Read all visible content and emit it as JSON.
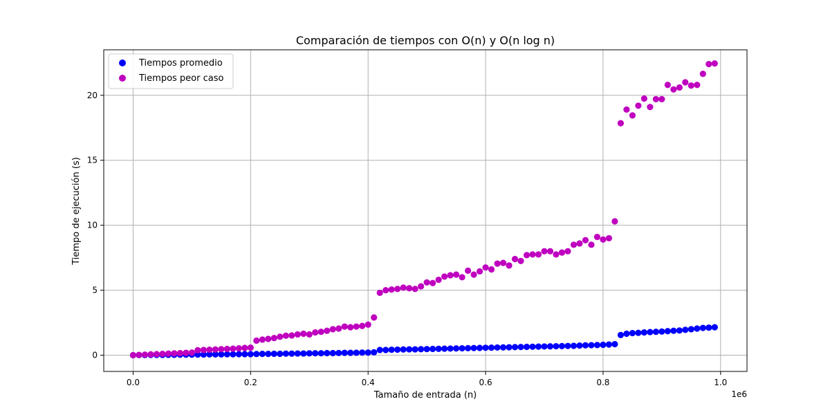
{
  "chart_data": {
    "type": "scatter",
    "title": "Comparación de tiempos con O(n) y O(n log n)",
    "xlabel": "Tamaño de entrada (n)",
    "ylabel": "Tiempo de ejecución (s)",
    "x_offset_label": "1e6",
    "xlim": [
      -50000,
      1045000
    ],
    "ylim": [
      -1.25,
      23.5
    ],
    "xticks": [
      0,
      200000,
      400000,
      600000,
      800000,
      1000000
    ],
    "xtick_labels": [
      "0.0",
      "0.2",
      "0.4",
      "0.6",
      "0.8",
      "1.0"
    ],
    "yticks": [
      0,
      5,
      10,
      15,
      20
    ],
    "ytick_labels": [
      "0",
      "5",
      "10",
      "15",
      "20"
    ],
    "grid": true,
    "legend_position": "top-left",
    "series": [
      {
        "name": "Tiempos promedio",
        "color": "#0000ff",
        "x": [
          0,
          10000,
          20000,
          30000,
          40000,
          50000,
          60000,
          70000,
          80000,
          90000,
          100000,
          110000,
          120000,
          130000,
          140000,
          150000,
          160000,
          170000,
          180000,
          190000,
          200000,
          210000,
          220000,
          230000,
          240000,
          250000,
          260000,
          270000,
          280000,
          290000,
          300000,
          310000,
          320000,
          330000,
          340000,
          350000,
          360000,
          370000,
          380000,
          390000,
          400000,
          410000,
          420000,
          430000,
          440000,
          450000,
          460000,
          470000,
          480000,
          490000,
          500000,
          510000,
          520000,
          530000,
          540000,
          550000,
          560000,
          570000,
          580000,
          590000,
          600000,
          610000,
          620000,
          630000,
          640000,
          650000,
          660000,
          670000,
          680000,
          690000,
          700000,
          710000,
          720000,
          730000,
          740000,
          750000,
          760000,
          770000,
          780000,
          790000,
          800000,
          810000,
          820000,
          830000,
          840000,
          850000,
          860000,
          870000,
          880000,
          890000,
          900000,
          910000,
          920000,
          930000,
          940000,
          950000,
          960000,
          970000,
          980000,
          990000
        ],
        "y": [
          0.0,
          0.01,
          0.01,
          0.02,
          0.02,
          0.02,
          0.03,
          0.03,
          0.04,
          0.04,
          0.04,
          0.05,
          0.05,
          0.06,
          0.06,
          0.06,
          0.07,
          0.07,
          0.08,
          0.08,
          0.08,
          0.09,
          0.1,
          0.1,
          0.11,
          0.11,
          0.12,
          0.12,
          0.13,
          0.13,
          0.14,
          0.15,
          0.15,
          0.16,
          0.16,
          0.17,
          0.18,
          0.18,
          0.19,
          0.2,
          0.2,
          0.22,
          0.4,
          0.4,
          0.42,
          0.43,
          0.44,
          0.45,
          0.45,
          0.46,
          0.47,
          0.48,
          0.49,
          0.5,
          0.51,
          0.52,
          0.53,
          0.54,
          0.55,
          0.56,
          0.57,
          0.58,
          0.59,
          0.6,
          0.61,
          0.62,
          0.63,
          0.64,
          0.65,
          0.66,
          0.67,
          0.68,
          0.69,
          0.7,
          0.71,
          0.72,
          0.74,
          0.76,
          0.77,
          0.78,
          0.8,
          0.82,
          0.85,
          1.55,
          1.65,
          1.7,
          1.72,
          1.75,
          1.78,
          1.8,
          1.82,
          1.85,
          1.88,
          1.9,
          1.95,
          2.0,
          2.05,
          2.1,
          2.12,
          2.15
        ]
      },
      {
        "name": "Tiempos peor caso",
        "color": "#bf00bf",
        "x": [
          0,
          10000,
          20000,
          30000,
          40000,
          50000,
          60000,
          70000,
          80000,
          90000,
          100000,
          110000,
          120000,
          130000,
          140000,
          150000,
          160000,
          170000,
          180000,
          190000,
          200000,
          210000,
          220000,
          230000,
          240000,
          250000,
          260000,
          270000,
          280000,
          290000,
          300000,
          310000,
          320000,
          330000,
          340000,
          350000,
          360000,
          370000,
          380000,
          390000,
          400000,
          410000,
          420000,
          430000,
          440000,
          450000,
          460000,
          470000,
          480000,
          490000,
          500000,
          510000,
          520000,
          530000,
          540000,
          550000,
          560000,
          570000,
          580000,
          590000,
          600000,
          610000,
          620000,
          630000,
          640000,
          650000,
          660000,
          670000,
          680000,
          690000,
          700000,
          710000,
          720000,
          730000,
          740000,
          750000,
          760000,
          770000,
          780000,
          790000,
          800000,
          810000,
          820000,
          830000,
          840000,
          850000,
          860000,
          870000,
          880000,
          890000,
          900000,
          910000,
          920000,
          930000,
          940000,
          950000,
          960000,
          970000,
          980000,
          990000
        ],
        "y": [
          0.0,
          0.02,
          0.04,
          0.06,
          0.08,
          0.1,
          0.12,
          0.14,
          0.16,
          0.18,
          0.2,
          0.38,
          0.4,
          0.42,
          0.44,
          0.46,
          0.48,
          0.5,
          0.53,
          0.56,
          0.58,
          1.12,
          1.2,
          1.25,
          1.32,
          1.42,
          1.5,
          1.52,
          1.6,
          1.65,
          1.6,
          1.75,
          1.8,
          1.88,
          2.0,
          2.05,
          2.2,
          2.15,
          2.2,
          2.25,
          2.35,
          2.9,
          4.8,
          5.0,
          5.05,
          5.1,
          5.2,
          5.15,
          5.1,
          5.3,
          5.6,
          5.55,
          5.8,
          6.05,
          6.15,
          6.2,
          6.0,
          6.5,
          6.2,
          6.45,
          6.75,
          6.6,
          7.05,
          7.1,
          6.9,
          7.4,
          7.25,
          7.7,
          7.75,
          7.75,
          8.0,
          8.0,
          7.75,
          7.9,
          8.0,
          8.5,
          8.6,
          8.85,
          8.5,
          9.1,
          8.9,
          9.0,
          10.3,
          17.85,
          18.9,
          18.45,
          19.2,
          19.75,
          19.1,
          19.7,
          19.7,
          20.8,
          20.45,
          20.6,
          21.0,
          20.75,
          20.8,
          21.65,
          22.4,
          22.45
        ]
      }
    ]
  }
}
